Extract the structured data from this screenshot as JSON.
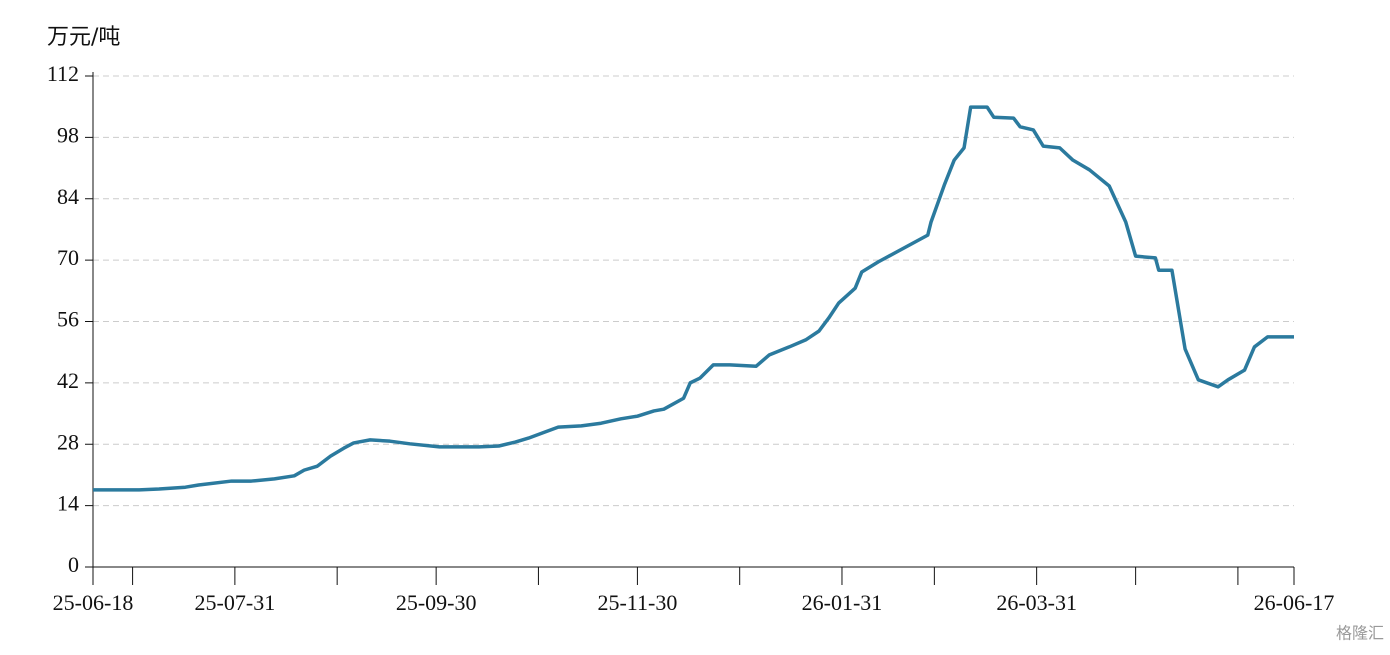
{
  "chart_data": {
    "type": "line",
    "y_label": "万元/吨",
    "watermark": "格隆汇",
    "x": [
      "25-06-18",
      "25-07-02",
      "25-07-08",
      "25-07-16",
      "25-07-20",
      "25-07-30",
      "25-08-05",
      "25-08-12",
      "25-08-18",
      "25-08-21",
      "25-08-25",
      "25-08-29",
      "25-09-02",
      "25-09-05",
      "25-09-10",
      "25-09-16",
      "25-09-22",
      "25-10-01",
      "25-10-13",
      "25-10-19",
      "25-10-24",
      "25-10-28",
      "25-11-02",
      "25-11-06",
      "25-11-13",
      "25-11-19",
      "25-11-25",
      "25-11-30",
      "25-12-05",
      "25-12-08",
      "25-12-14",
      "25-12-16",
      "25-12-19",
      "25-12-23",
      "25-12-28",
      "26-01-05",
      "26-01-09",
      "26-01-15",
      "26-01-20",
      "26-01-24",
      "26-01-27",
      "26-01-30",
      "26-02-04",
      "26-02-06",
      "26-02-11",
      "26-02-26",
      "26-02-27",
      "26-03-03",
      "26-03-06",
      "26-03-09",
      "26-03-11",
      "26-03-16",
      "26-03-18",
      "26-03-24",
      "26-03-26",
      "26-03-30",
      "26-04-02",
      "26-04-07",
      "26-04-11",
      "26-04-16",
      "26-04-22",
      "26-04-27",
      "26-04-30",
      "26-05-06",
      "26-05-07",
      "26-05-11",
      "26-05-15",
      "26-05-19",
      "26-05-25",
      "26-05-28",
      "26-06-02",
      "26-06-05",
      "26-06-09",
      "26-06-17"
    ],
    "series": [
      {
        "color": "#2b7a9e",
        "values": [
          17.6,
          17.6,
          17.8,
          18.2,
          18.7,
          19.6,
          19.6,
          20.1,
          20.8,
          22.1,
          23.0,
          25.3,
          27.1,
          28.3,
          29.0,
          28.7,
          28.1,
          27.4,
          27.4,
          27.6,
          28.5,
          29.4,
          30.8,
          31.9,
          32.2,
          32.8,
          33.8,
          34.4,
          35.6,
          36.0,
          38.5,
          42.0,
          43.1,
          46.1,
          46.1,
          45.8,
          48.4,
          50.2,
          51.8,
          53.8,
          56.8,
          60.2,
          63.6,
          67.3,
          69.6,
          75.7,
          78.7,
          87.1,
          92.8,
          95.6,
          104.9,
          104.9,
          102.6,
          102.4,
          100.4,
          99.7,
          96.0,
          95.6,
          92.8,
          90.6,
          86.9,
          78.7,
          70.9,
          70.5,
          67.7,
          67.7,
          49.7,
          42.7,
          41.1,
          42.7,
          44.9,
          50.2,
          52.5,
          52.5
        ]
      }
    ],
    "xlim": [
      "25-06-18",
      "26-06-17"
    ],
    "xticks": [
      "25-06-18",
      "25-07-31",
      "25-09-30",
      "25-11-30",
      "26-01-31",
      "26-03-31",
      "26-06-17"
    ],
    "ylim": [
      0,
      112
    ],
    "yticks": [
      0,
      14,
      28,
      42,
      56,
      70,
      84,
      98,
      112
    ],
    "grid": true
  }
}
